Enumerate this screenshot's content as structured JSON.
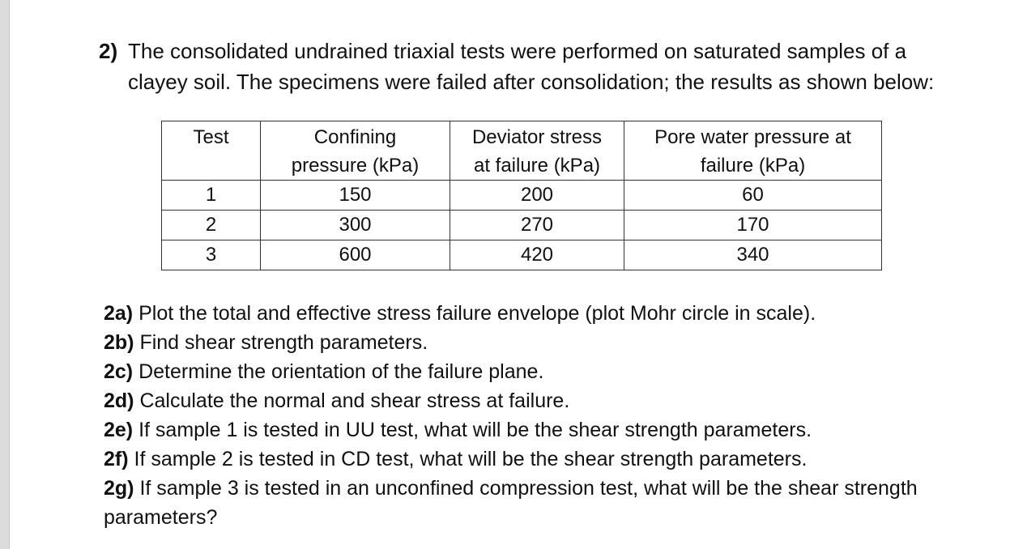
{
  "question": {
    "number": "2)",
    "intro_line1": "The consolidated undrained triaxial tests were performed on saturated samples of a",
    "intro_line2": "clayey soil. The specimens were failed after consolidation; the results as shown below:"
  },
  "table": {
    "headers": [
      {
        "line1": "Test",
        "line2": ""
      },
      {
        "line1": "Confining",
        "line2": "pressure (kPa)"
      },
      {
        "line1": "Deviator stress",
        "line2": "at failure (kPa)"
      },
      {
        "line1": "Pore water pressure at",
        "line2": "failure (kPa)"
      }
    ],
    "rows": [
      [
        "1",
        "150",
        "200",
        "60"
      ],
      [
        "2",
        "300",
        "270",
        "170"
      ],
      [
        "3",
        "600",
        "420",
        "340"
      ]
    ]
  },
  "parts": [
    {
      "label": "2a)",
      "text": " Plot the total and effective stress failure envelope (plot Mohr circle in scale)."
    },
    {
      "label": "2b)",
      "text": " Find shear strength parameters."
    },
    {
      "label": "2c)",
      "text": " Determine the orientation of the failure plane."
    },
    {
      "label": "2d)",
      "text": " Calculate the normal and shear stress at failure."
    },
    {
      "label": "2e)",
      "text": " If sample 1 is tested in UU test, what will be the shear strength parameters."
    },
    {
      "label": "2f)",
      "text": " If sample 2 is tested in CD test, what will be the shear strength parameters."
    },
    {
      "label": "2g)",
      "text": " If sample 3 is tested in an unconfined compression test, what will be the shear strength",
      "continuation": "parameters?"
    }
  ]
}
